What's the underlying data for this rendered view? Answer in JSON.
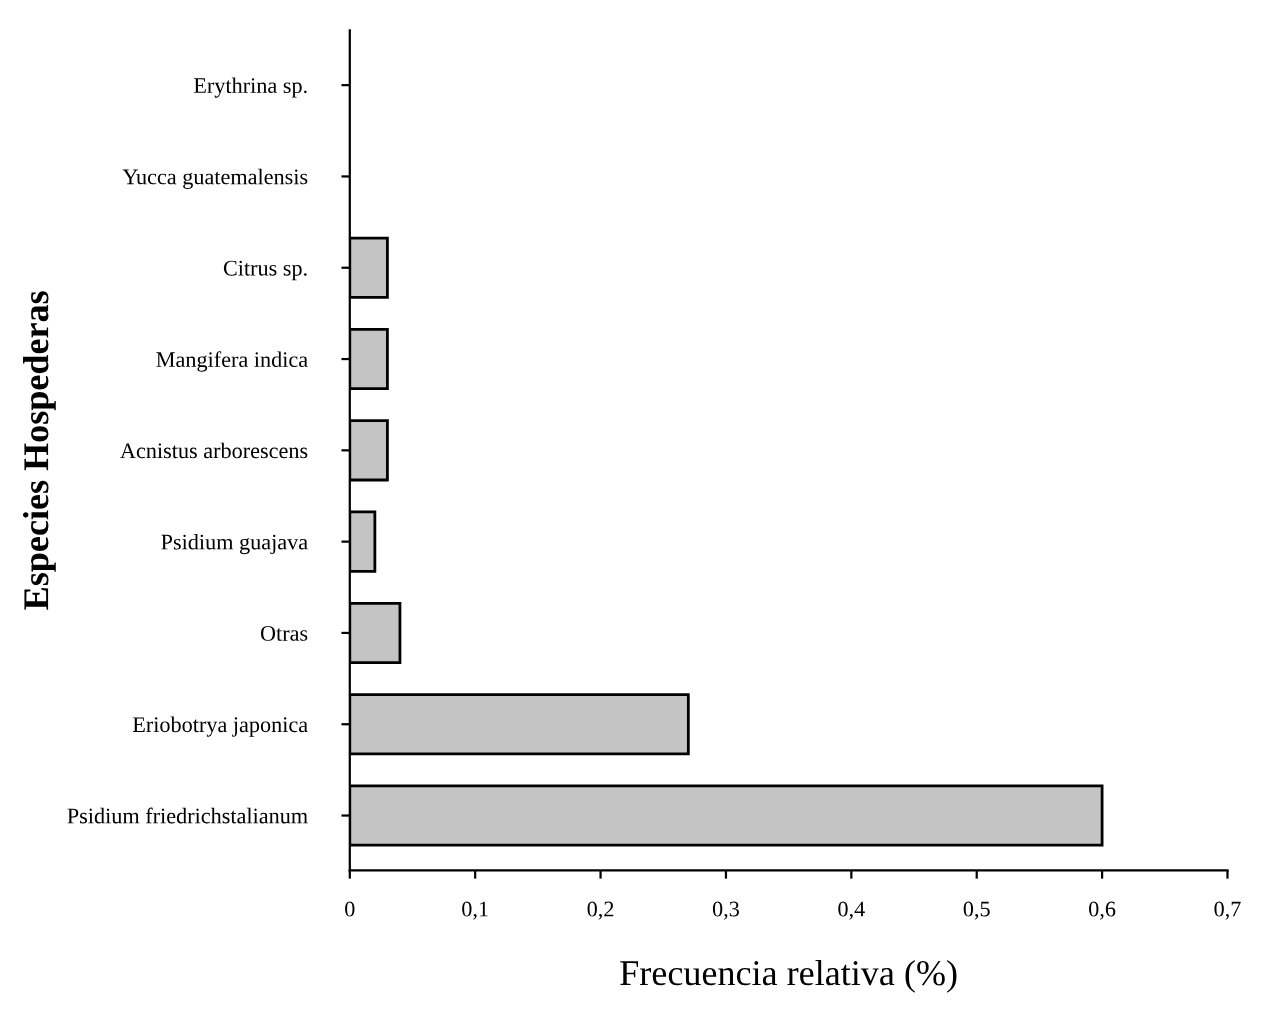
{
  "chart_data": {
    "type": "bar",
    "orientation": "horizontal",
    "xlabel": "Frecuencia relativa (%)",
    "ylabel": "Especies Hospederas",
    "categories": [
      "Erythrina sp.",
      "Yucca guatemalensis",
      "Citrus sp.",
      "Mangifera indica",
      "Acnistus arborescens",
      "Psidium guajava",
      "Otras",
      "Eriobotrya japonica",
      "Psidium friedrichstalianum"
    ],
    "values": [
      0,
      0,
      0.03,
      0.03,
      0.03,
      0.02,
      0.04,
      0.27,
      0.6
    ],
    "color": "#c4c4c4",
    "xlim": [
      0,
      0.7
    ],
    "xticks": [
      0,
      {
        "value": 0.1,
        "label": "0,1"
      },
      {
        "value": 0.2,
        "label": "0,2"
      },
      {
        "value": 0.3,
        "label": "0,3"
      },
      {
        "value": 0.4,
        "label": "0,4"
      },
      {
        "value": 0.5,
        "label": "0,5"
      },
      {
        "value": 0.6,
        "label": "0,6"
      },
      {
        "value": 0.7,
        "label": "0,7"
      }
    ],
    "grid": false
  }
}
